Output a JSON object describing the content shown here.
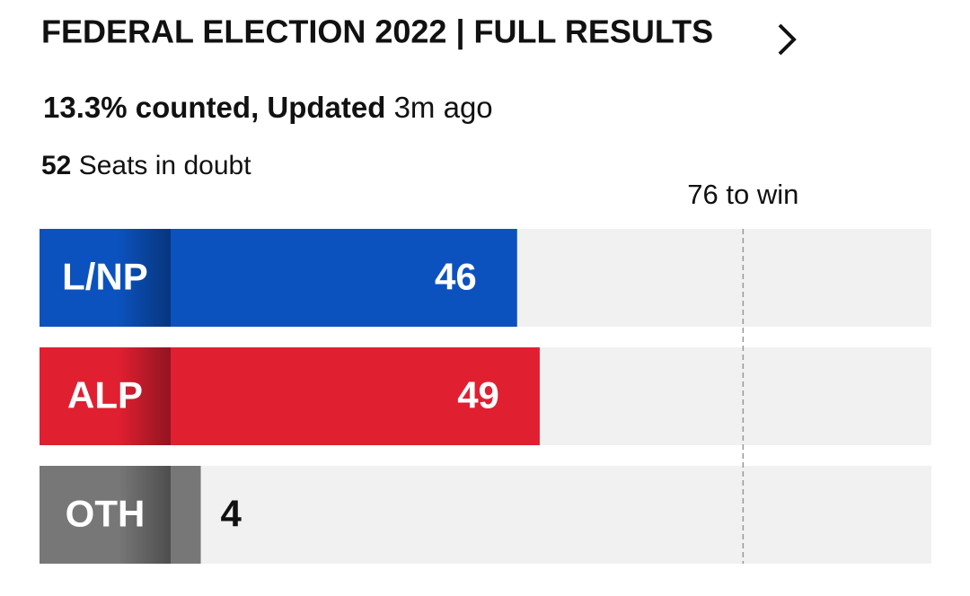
{
  "chart_data": {
    "type": "bar",
    "orientation": "horizontal",
    "title": "FEDERAL ELECTION 2022 | FULL RESULTS",
    "counted": "13.3% counted, Updated",
    "updated": "3m ago",
    "doubt_count": 52,
    "doubt_text": "Seats in doubt",
    "categories": [
      "L/NP",
      "ALP",
      "OTH"
    ],
    "values": [
      46,
      49,
      4
    ],
    "colors": [
      "#0b52bf",
      "#e01f31",
      "#777777"
    ],
    "target": {
      "value": 76,
      "label": "76 to win"
    },
    "xlim": [
      0,
      101
    ]
  }
}
